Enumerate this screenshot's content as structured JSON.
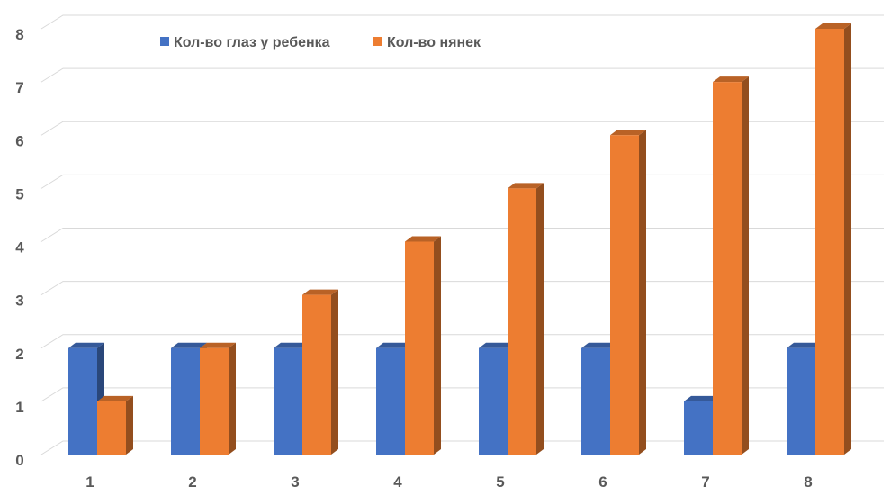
{
  "chart_data": {
    "type": "bar",
    "title": "",
    "xlabel": "",
    "ylabel": "",
    "categories": [
      "1",
      "2",
      "3",
      "4",
      "5",
      "6",
      "7",
      "8"
    ],
    "series": [
      {
        "name": "Кол-во глаз у ребенка",
        "values": [
          2,
          2,
          2,
          2,
          2,
          2,
          1,
          2
        ],
        "color": "#4472C4"
      },
      {
        "name": "Кол-во нянек",
        "values": [
          1,
          2,
          3,
          4,
          5,
          6,
          7,
          8
        ],
        "color": "#ED7D31"
      }
    ],
    "ylim": [
      0,
      8
    ],
    "yticks": [
      "0",
      "1",
      "2",
      "3",
      "4",
      "5",
      "6",
      "7",
      "8"
    ],
    "grid": true,
    "legend": "top-left",
    "style": "3d-column"
  }
}
